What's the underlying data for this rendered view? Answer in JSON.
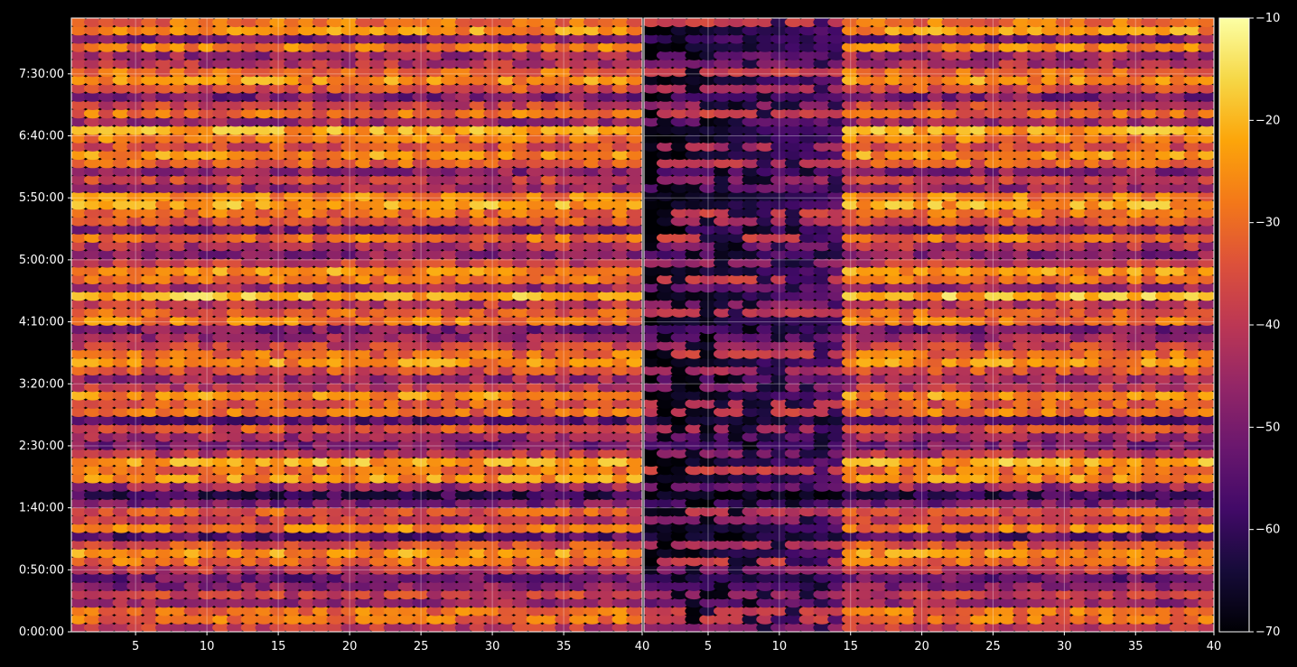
{
  "chart_data": {
    "type": "heatmap",
    "colormap": "inferno",
    "grid": true,
    "panels": [
      {
        "name": "",
        "x_ticks": [
          5,
          10,
          15,
          20,
          25,
          30,
          35,
          40
        ],
        "xlim": [
          1,
          40
        ],
        "y_ticks": [
          "0:00:00",
          "0:50:00",
          "1:40:00",
          "2:30:00",
          "3:20:00",
          "4:10:00",
          "5:00:00",
          "5:50:00",
          "6:40:00",
          "7:30:00"
        ],
        "ylim_seconds": [
          0,
          29700
        ],
        "row_count": 74,
        "low_column_range": [],
        "base_level": -30
      },
      {
        "name": "",
        "x_ticks": [
          5,
          10,
          15,
          20,
          25,
          30,
          35,
          40
        ],
        "xlim": [
          1,
          40
        ],
        "y_ticks": [
          "0:00:00",
          "0:50:00",
          "1:40:00",
          "2:30:00",
          "3:20:00",
          "4:10:00",
          "5:00:00",
          "5:50:00",
          "6:40:00",
          "7:30:00"
        ],
        "ylim_seconds": [
          0,
          29700
        ],
        "row_count": 74,
        "low_column_range": [
          1,
          14
        ],
        "base_level": -30
      }
    ],
    "colorbar": {
      "ticks": [
        "−10",
        "−20",
        "−30",
        "−40",
        "−50",
        "−60",
        "−70"
      ],
      "tick_values": [
        -10,
        -20,
        -30,
        -40,
        -50,
        -60,
        -70
      ],
      "range": [
        -70,
        -10
      ]
    },
    "row_levels": [
      -40,
      -30,
      -30,
      -45,
      -38,
      -48,
      -52,
      -40,
      -30,
      -25,
      -35,
      -55,
      -28,
      -40,
      -33,
      -50,
      -60,
      -45,
      -25,
      -30,
      -22,
      -40,
      -50,
      -45,
      -35,
      -55,
      -30,
      -33,
      -25,
      -40,
      -45,
      -35,
      -25,
      -30,
      -38,
      -45,
      -50,
      -28,
      -32,
      -40,
      -20,
      -45,
      -30,
      -25,
      -38,
      -48,
      -42,
      -30,
      -50,
      -35,
      -30,
      -22,
      -27,
      -45,
      -38,
      -48,
      -32,
      -25,
      -35,
      -28,
      -22,
      -45,
      -30,
      -38,
      -50,
      -35,
      -25,
      -30,
      -42,
      -45,
      -28,
      -50,
      -25,
      -30
    ]
  }
}
